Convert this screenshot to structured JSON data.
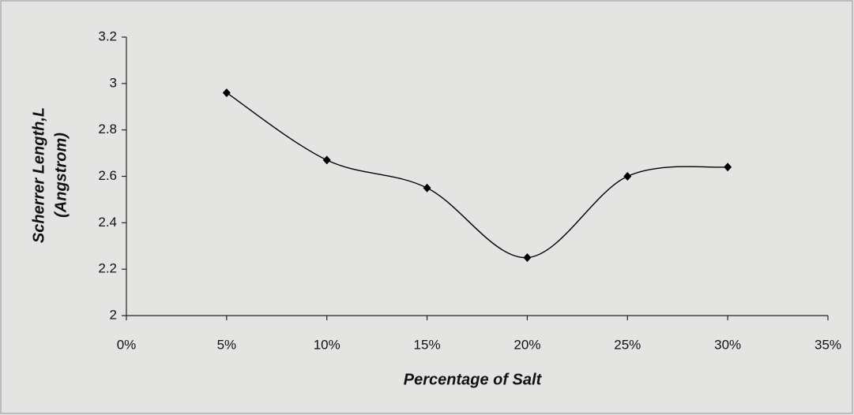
{
  "chart_data": {
    "type": "line",
    "smooth": true,
    "xlabel": "Percentage of Salt",
    "ylabel": [
      "Scherrer Length,L",
      "(Angstrom)"
    ],
    "x": [
      5,
      10,
      15,
      20,
      25,
      30
    ],
    "series": [
      {
        "color": "#000000",
        "values": [
          2.96,
          2.67,
          2.55,
          2.25,
          2.6,
          2.64
        ]
      }
    ],
    "xlim": [
      0,
      35
    ],
    "xticks": [
      {
        "value": 0,
        "label": "0%"
      },
      {
        "value": 5,
        "label": "5%"
      },
      {
        "value": 10,
        "label": "10%"
      },
      {
        "value": 15,
        "label": "15%"
      },
      {
        "value": 20,
        "label": "20%"
      },
      {
        "value": 25,
        "label": "25%"
      },
      {
        "value": 30,
        "label": "30%"
      },
      {
        "value": 35,
        "label": "35%"
      }
    ],
    "ylim": [
      2,
      3.2
    ],
    "yticks": [
      2,
      2.2,
      2.4,
      2.6,
      2.8,
      3,
      3.2
    ],
    "grid": false
  }
}
